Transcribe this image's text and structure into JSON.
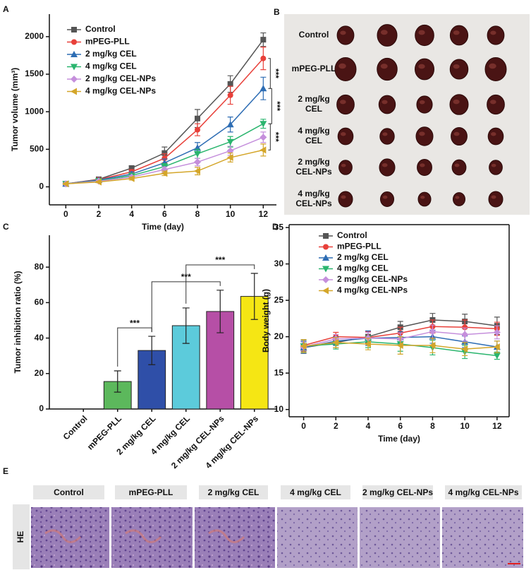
{
  "panel_labels": [
    "A",
    "B",
    "C",
    "D",
    "E"
  ],
  "chart_data": [
    {
      "type": "line",
      "xlabel": "Time (day)",
      "ylabel": "Tumor volume (mm³)",
      "x": [
        0,
        2,
        4,
        6,
        8,
        10,
        12
      ],
      "xlim": [
        -1,
        12.8
      ],
      "xticks": [
        0,
        2,
        4,
        6,
        8,
        10,
        12
      ],
      "ylim": [
        -240,
        2300
      ],
      "yticks": [
        0,
        500,
        1000,
        1500,
        2000
      ],
      "series": [
        {
          "name": "Control",
          "color": "#555555",
          "marker": "square",
          "values": [
            40,
            100,
            250,
            450,
            910,
            1370,
            1960
          ],
          "errors": [
            15,
            20,
            30,
            80,
            120,
            110,
            90
          ]
        },
        {
          "name": "mPEG-PLL",
          "color": "#e8403a",
          "marker": "circle",
          "values": [
            40,
            95,
            200,
            380,
            760,
            1220,
            1710
          ],
          "errors": [
            15,
            20,
            30,
            60,
            80,
            120,
            150
          ]
        },
        {
          "name": "2 mg/kg CEL",
          "color": "#2e6db4",
          "marker": "triangle-up",
          "values": [
            40,
            90,
            170,
            320,
            520,
            830,
            1310
          ],
          "errors": [
            15,
            20,
            30,
            50,
            70,
            100,
            150
          ]
        },
        {
          "name": "4 mg/kg CEL",
          "color": "#2ab56e",
          "marker": "triangle-down",
          "values": [
            40,
            80,
            150,
            270,
            440,
            600,
            840
          ],
          "errors": [
            10,
            15,
            25,
            40,
            60,
            70,
            60
          ]
        },
        {
          "name": "2 mg/kg CEL-NPs",
          "color": "#c58fdc",
          "marker": "diamond",
          "values": [
            40,
            75,
            130,
            230,
            330,
            480,
            660
          ],
          "errors": [
            10,
            15,
            20,
            35,
            50,
            60,
            70
          ]
        },
        {
          "name": "4 mg/kg CEL-NPs",
          "color": "#d4a62a",
          "marker": "triangle-left",
          "values": [
            40,
            65,
            110,
            180,
            210,
            390,
            490
          ],
          "errors": [
            10,
            10,
            20,
            30,
            50,
            60,
            80
          ]
        }
      ],
      "annotations": [
        "***",
        "***",
        "***"
      ]
    },
    {
      "type": "bar",
      "ylabel": "Tumor inhibition ratio (%)",
      "categories": [
        "Control",
        "mPEG-PLL",
        "2 mg/kg CEL",
        "4 mg/kg CEL",
        "2 mg/kg CEL-NPs",
        "4 mg/kg CEL-NPs"
      ],
      "values": [
        0,
        15.5,
        33,
        47,
        55,
        63.5
      ],
      "errors": [
        0,
        6,
        8,
        10,
        12,
        13
      ],
      "colors": [
        "#5cb85c",
        "#5cb85c",
        "#2f4fa8",
        "#5ccbdb",
        "#b64fa6",
        "#f5e614"
      ],
      "ylim": [
        0,
        98
      ],
      "yticks": [
        0,
        20,
        40,
        60,
        80
      ],
      "annotations": [
        "***",
        "***",
        "***"
      ]
    },
    {
      "type": "line",
      "xlabel": "Time (day)",
      "ylabel": "Body weight (g)",
      "x": [
        0,
        2,
        4,
        6,
        8,
        10,
        12
      ],
      "xlim": [
        -0.9,
        12.75
      ],
      "xticks": [
        0,
        2,
        4,
        6,
        8,
        10,
        12
      ],
      "ylim": [
        9,
        35.4
      ],
      "yticks": [
        10,
        15,
        20,
        25,
        30,
        35
      ],
      "frame": true,
      "series": [
        {
          "name": "Control",
          "color": "#555555",
          "marker": "square",
          "values": [
            18.5,
            19.2,
            20.0,
            21.3,
            22.3,
            22.1,
            21.5
          ],
          "errors": [
            0.8,
            0.7,
            0.8,
            0.8,
            0.9,
            1.0,
            1.2
          ]
        },
        {
          "name": "mPEG-PLL",
          "color": "#e8403a",
          "marker": "circle",
          "values": [
            18.8,
            20.0,
            19.9,
            20.5,
            21.4,
            21.3,
            21.1
          ],
          "errors": [
            0.8,
            0.6,
            0.8,
            0.8,
            0.9,
            1.0,
            0.9
          ]
        },
        {
          "name": "2 mg/kg CEL",
          "color": "#2e6db4",
          "marker": "triangle-up",
          "values": [
            18.5,
            19.4,
            19.8,
            19.9,
            20.0,
            19.3,
            18.6
          ],
          "errors": [
            0.8,
            0.6,
            1.0,
            0.8,
            0.9,
            0.8,
            0.8
          ]
        },
        {
          "name": "4 mg/kg CEL",
          "color": "#2ab56e",
          "marker": "triangle-down",
          "values": [
            18.7,
            19.0,
            19.3,
            19.0,
            18.5,
            17.9,
            17.4
          ],
          "errors": [
            0.8,
            0.7,
            0.8,
            1.0,
            1.0,
            0.9,
            0.5
          ]
        },
        {
          "name": "2 mg/kg CEL-NPs",
          "color": "#c58fdc",
          "marker": "diamond",
          "values": [
            18.6,
            19.7,
            19.8,
            19.7,
            20.7,
            20.3,
            20.6
          ],
          "errors": [
            0.8,
            0.6,
            0.8,
            0.8,
            0.9,
            0.9,
            0.9
          ]
        },
        {
          "name": "4 mg/kg CEL-NPs",
          "color": "#d4a62a",
          "marker": "triangle-left",
          "values": [
            18.7,
            19.2,
            19.0,
            18.8,
            18.8,
            18.3,
            18.6
          ],
          "errors": [
            0.9,
            0.7,
            0.8,
            1.2,
            1.0,
            0.9,
            0.8
          ]
        }
      ]
    }
  ],
  "tumor_photos": {
    "row_labels": [
      [
        "Control"
      ],
      [
        "mPEG-PLL"
      ],
      [
        "2 mg/kg",
        "CEL"
      ],
      [
        "4 mg/kg",
        "CEL"
      ],
      [
        "2 mg/kg",
        "CEL-NPs"
      ],
      [
        "4 mg/kg",
        "CEL-NPs"
      ]
    ]
  },
  "histology": {
    "row_label": "HE",
    "column_labels": [
      "Control",
      "mPEG-PLL",
      "2 mg/kg CEL",
      "4 mg/kg CEL",
      "2 mg/kg CEL-NPs",
      "4 mg/kg CEL-NPs"
    ]
  }
}
